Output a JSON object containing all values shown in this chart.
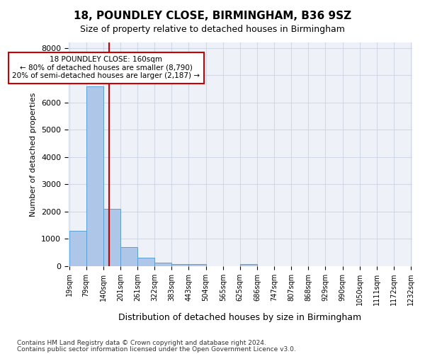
{
  "title1": "18, POUNDLEY CLOSE, BIRMINGHAM, B36 9SZ",
  "title2": "Size of property relative to detached houses in Birmingham",
  "xlabel": "Distribution of detached houses by size in Birmingham",
  "ylabel": "Number of detached properties",
  "annotation_line1": "18 POUNDLEY CLOSE: 160sqm",
  "annotation_line2": "← 80% of detached houses are smaller (8,790)",
  "annotation_line3": "20% of semi-detached houses are larger (2,187) →",
  "property_size": 160,
  "bin_edges": [
    19,
    79,
    140,
    201,
    261,
    322,
    383,
    443,
    504,
    565,
    625,
    686,
    747,
    807,
    868,
    929,
    990,
    1050,
    1111,
    1172,
    1232
  ],
  "bar_heights": [
    1300,
    6600,
    2100,
    700,
    300,
    130,
    80,
    80,
    0,
    0,
    80,
    0,
    0,
    0,
    0,
    0,
    0,
    0,
    0,
    0
  ],
  "bar_color": "#aec6e8",
  "bar_edgecolor": "#5a9fd4",
  "vline_color": "#cc0000",
  "grid_color": "#d0d8e8",
  "bg_color": "#eef2f8",
  "ylim": [
    0,
    8200
  ],
  "yticks": [
    0,
    1000,
    2000,
    3000,
    4000,
    5000,
    6000,
    7000,
    8000
  ],
  "tick_labels": [
    "19sqm",
    "79sqm",
    "140sqm",
    "201sqm",
    "261sqm",
    "322sqm",
    "383sqm",
    "443sqm",
    "504sqm",
    "565sqm",
    "625sqm",
    "686sqm",
    "747sqm",
    "807sqm",
    "868sqm",
    "929sqm",
    "990sqm",
    "1050sqm",
    "1111sqm",
    "1172sqm",
    "1232sqm"
  ],
  "footnote1": "Contains HM Land Registry data © Crown copyright and database right 2024.",
  "footnote2": "Contains public sector information licensed under the Open Government Licence v3.0."
}
